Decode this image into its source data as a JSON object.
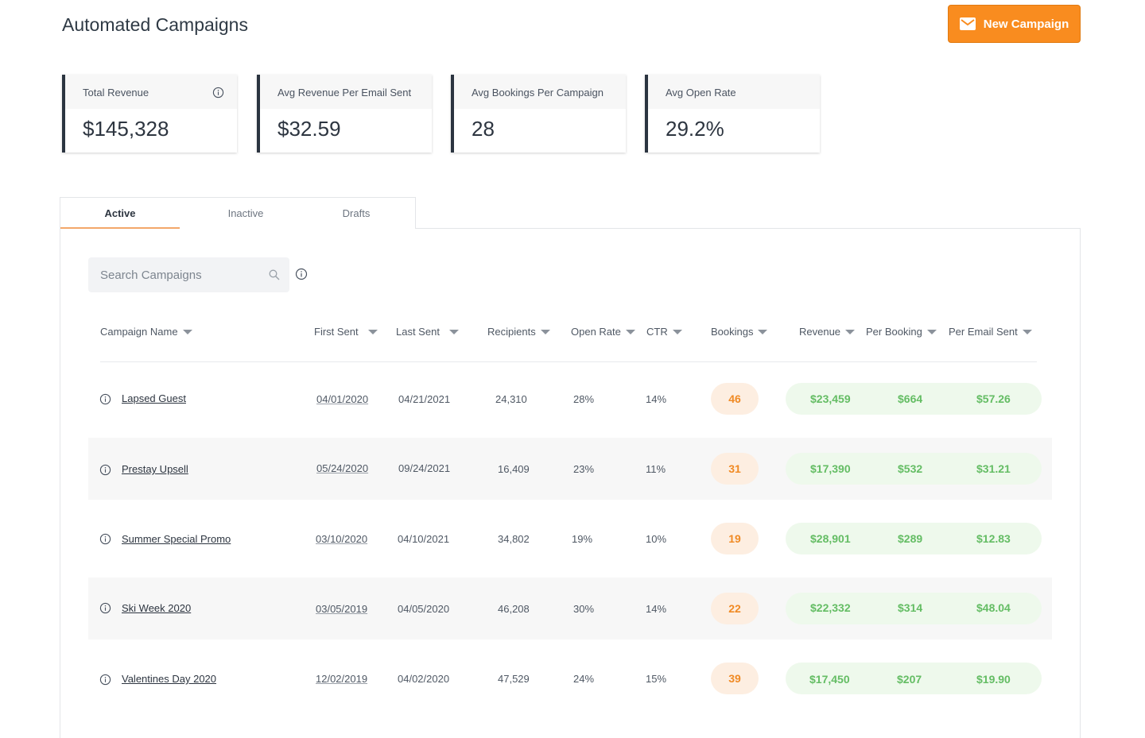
{
  "header": {
    "title": "Automated Campaigns",
    "new_campaign_label": "New Campaign"
  },
  "stats": [
    {
      "label": "Total Revenue",
      "value": "$145,328"
    },
    {
      "label": "Avg Revenue Per Email Sent",
      "value": "$32.59"
    },
    {
      "label": "Avg Bookings Per Campaign",
      "value": "28"
    },
    {
      "label": "Avg Open Rate",
      "value": "29.2%"
    }
  ],
  "tabs": [
    {
      "label": "Active",
      "active": true
    },
    {
      "label": "Inactive",
      "active": false
    },
    {
      "label": "Drafts",
      "active": false
    }
  ],
  "search": {
    "placeholder": "Search Campaigns",
    "value": ""
  },
  "columns": [
    "Campaign Name",
    "First Sent",
    "Last Sent",
    "Recipients",
    "Open Rate",
    "CTR",
    "Bookings",
    "Revenue",
    "Per Booking",
    "Per Email Sent"
  ],
  "rows": [
    {
      "name": "Lapsed Guest",
      "first_sent": "04/01/2020",
      "last_sent": "04/21/2021",
      "recipients": "24,310",
      "open_rate": "28%",
      "ctr": "14%",
      "bookings": "46",
      "revenue": "$23,459",
      "per_booking": "$664",
      "per_email": "$57.26"
    },
    {
      "name": "Prestay Upsell",
      "first_sent": "05/24/2020",
      "last_sent": "09/24/2021",
      "recipients": "16,409",
      "open_rate": "23%",
      "ctr": "11%",
      "bookings": "31",
      "revenue": "$17,390",
      "per_booking": "$532",
      "per_email": "$31.21"
    },
    {
      "name": "Summer Special Promo",
      "first_sent": "03/10/2020",
      "last_sent": "04/10/2021",
      "recipients": "34,802",
      "open_rate": "19%",
      "ctr": "10%",
      "bookings": "19",
      "revenue": "$28,901",
      "per_booking": "$289",
      "per_email": "$12.83"
    },
    {
      "name": "Ski Week 2020",
      "first_sent": "03/05/2019",
      "last_sent": "04/05/2020",
      "recipients": "46,208",
      "open_rate": "30%",
      "ctr": "14%",
      "bookings": "22",
      "revenue": "$22,332",
      "per_booking": "$314",
      "per_email": "$48.04"
    },
    {
      "name": "Valentines Day 2020",
      "first_sent": "12/02/2019",
      "last_sent": "04/02/2020",
      "recipients": "47,529",
      "open_rate": "24%",
      "ctr": "15%",
      "bookings": "39",
      "revenue": "$17,450",
      "per_booking": "$207",
      "per_email": "$19.90"
    }
  ],
  "colors": {
    "accent": "#f98c1f",
    "success": "#64bd64",
    "dark": "#2b3440"
  }
}
